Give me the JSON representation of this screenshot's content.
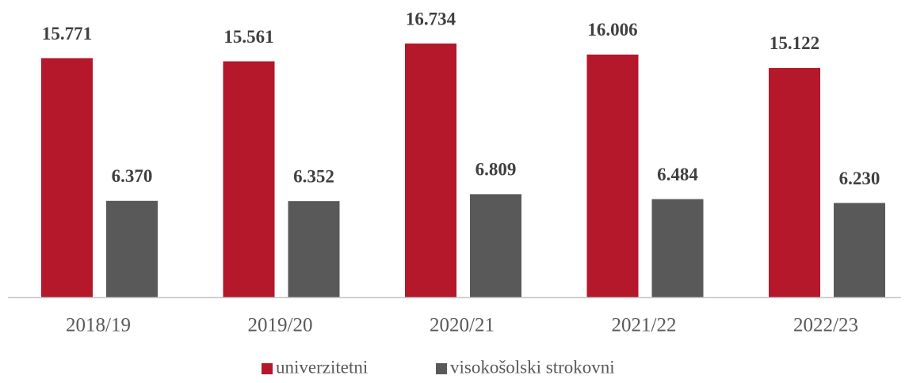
{
  "chart_data": {
    "type": "bar",
    "categories": [
      "2018/19",
      "2019/20",
      "2020/21",
      "2021/22",
      "2022/23"
    ],
    "series": [
      {
        "name": "univerzitetni",
        "color": "#b5172b",
        "values": [
          15771,
          15561,
          16734,
          16006,
          15122
        ],
        "value_labels": [
          "15.771",
          "15.561",
          "16.734",
          "16.006",
          "15.122"
        ]
      },
      {
        "name": "visokošolski strokovni",
        "color": "#595959",
        "values": [
          6370,
          6352,
          6809,
          6484,
          6230
        ],
        "value_labels": [
          "6.370",
          "6.352",
          "6.809",
          "6.484",
          "6.230"
        ]
      }
    ],
    "legend": "bottom"
  }
}
